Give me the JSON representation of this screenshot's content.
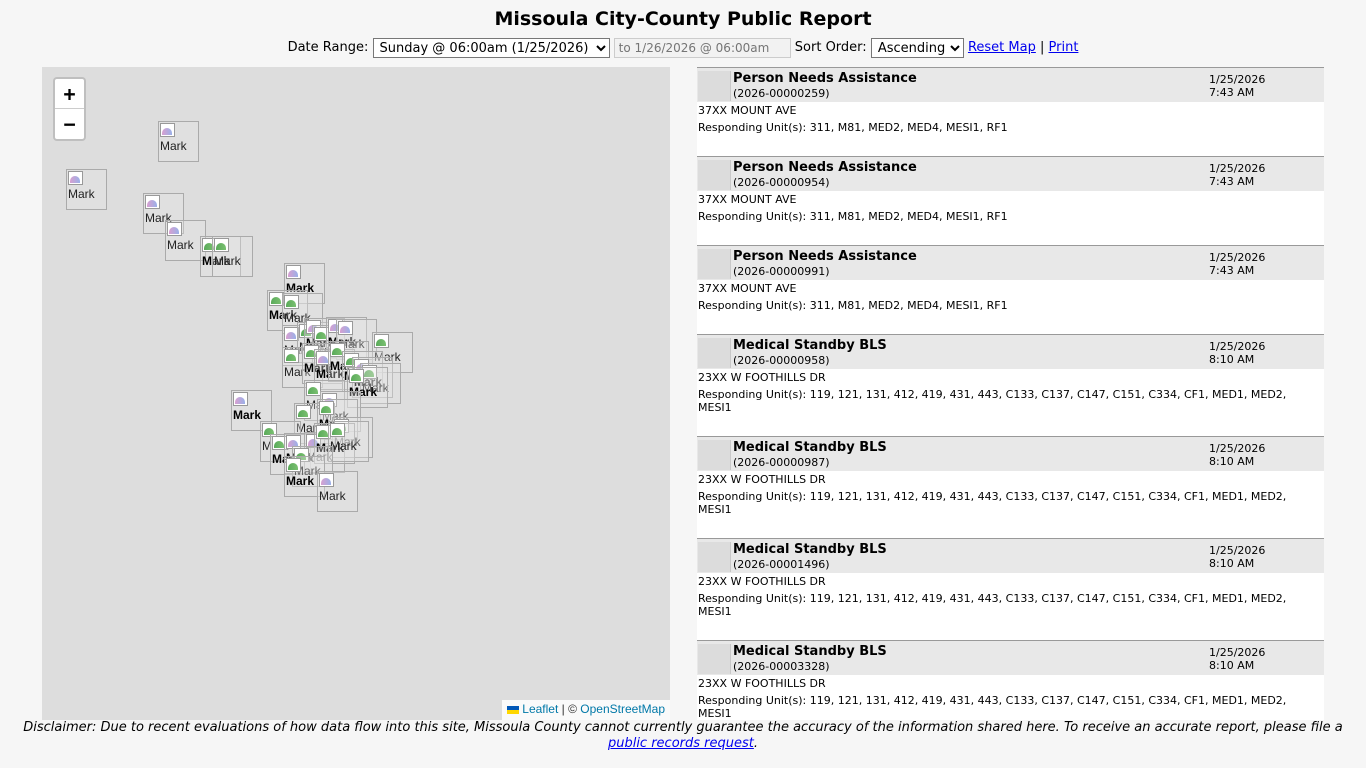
{
  "header": {
    "title": "Missoula City-County Public Report"
  },
  "controls": {
    "date_range_label": "Date Range:",
    "date_range_value": "Sunday @ 06:00am (1/25/2026)",
    "end_date_placeholder": "to 1/26/2026 @ 06:00am",
    "sort_order_label": "Sort Order:",
    "sort_order_value": "Ascending",
    "reset_map_link": "Reset Map",
    "separator": "|",
    "print_link": "Print"
  },
  "map": {
    "zoom_in_label": "+",
    "zoom_out_label": "−",
    "marker_alt_text": "Mark",
    "attribution": {
      "leaflet": "Leaflet",
      "separator": "| ©",
      "osm": "OpenStreetMap"
    }
  },
  "incidents": [
    {
      "type": "Person Needs Assistance",
      "number": "(2026-00000259)",
      "date": "1/25/2026",
      "time": "7:43 AM",
      "address": "37XX MOUNT AVE",
      "units": "Responding Unit(s): 311, M81, MED2, MED4, MESI1, RF1"
    },
    {
      "type": "Person Needs Assistance",
      "number": "(2026-00000954)",
      "date": "1/25/2026",
      "time": "7:43 AM",
      "address": "37XX MOUNT AVE",
      "units": "Responding Unit(s): 311, M81, MED2, MED4, MESI1, RF1"
    },
    {
      "type": "Person Needs Assistance",
      "number": "(2026-00000991)",
      "date": "1/25/2026",
      "time": "7:43 AM",
      "address": "37XX MOUNT AVE",
      "units": "Responding Unit(s): 311, M81, MED2, MED4, MESI1, RF1"
    },
    {
      "type": "Medical Standby BLS",
      "number": "(2026-00000958)",
      "date": "1/25/2026",
      "time": "8:10 AM",
      "address": "23XX W FOOTHILLS DR",
      "units": "Responding Unit(s): 119, 121, 131, 412, 419, 431, 443, C133, C137, C147, C151, C334, CF1, MED1, MED2, MESI1"
    },
    {
      "type": "Medical Standby BLS",
      "number": "(2026-00000987)",
      "date": "1/25/2026",
      "time": "8:10 AM",
      "address": "23XX W FOOTHILLS DR",
      "units": "Responding Unit(s): 119, 121, 131, 412, 419, 431, 443, C133, C137, C147, C151, C334, CF1, MED1, MED2, MESI1"
    },
    {
      "type": "Medical Standby BLS",
      "number": "(2026-00001496)",
      "date": "1/25/2026",
      "time": "8:10 AM",
      "address": "23XX W FOOTHILLS DR",
      "units": "Responding Unit(s): 119, 121, 131, 412, 419, 431, 443, C133, C137, C147, C151, C334, CF1, MED1, MED2, MESI1"
    },
    {
      "type": "Medical Standby BLS",
      "number": "(2026-00003328)",
      "date": "1/25/2026",
      "time": "8:10 AM",
      "address": "23XX W FOOTHILLS DR",
      "units": "Responding Unit(s): 119, 121, 131, 412, 419, 431, 443, C133, C137, C147, C151, C334, CF1, MED1, MED2, MESI1"
    }
  ],
  "disclaimer": {
    "text": "Disclaimer: Due to recent evaluations of how data flow into this site, Missoula County cannot currently guarantee the accuracy of the information shared here. To receive an accurate report, please file a",
    "link": "public records request",
    "end": "."
  }
}
